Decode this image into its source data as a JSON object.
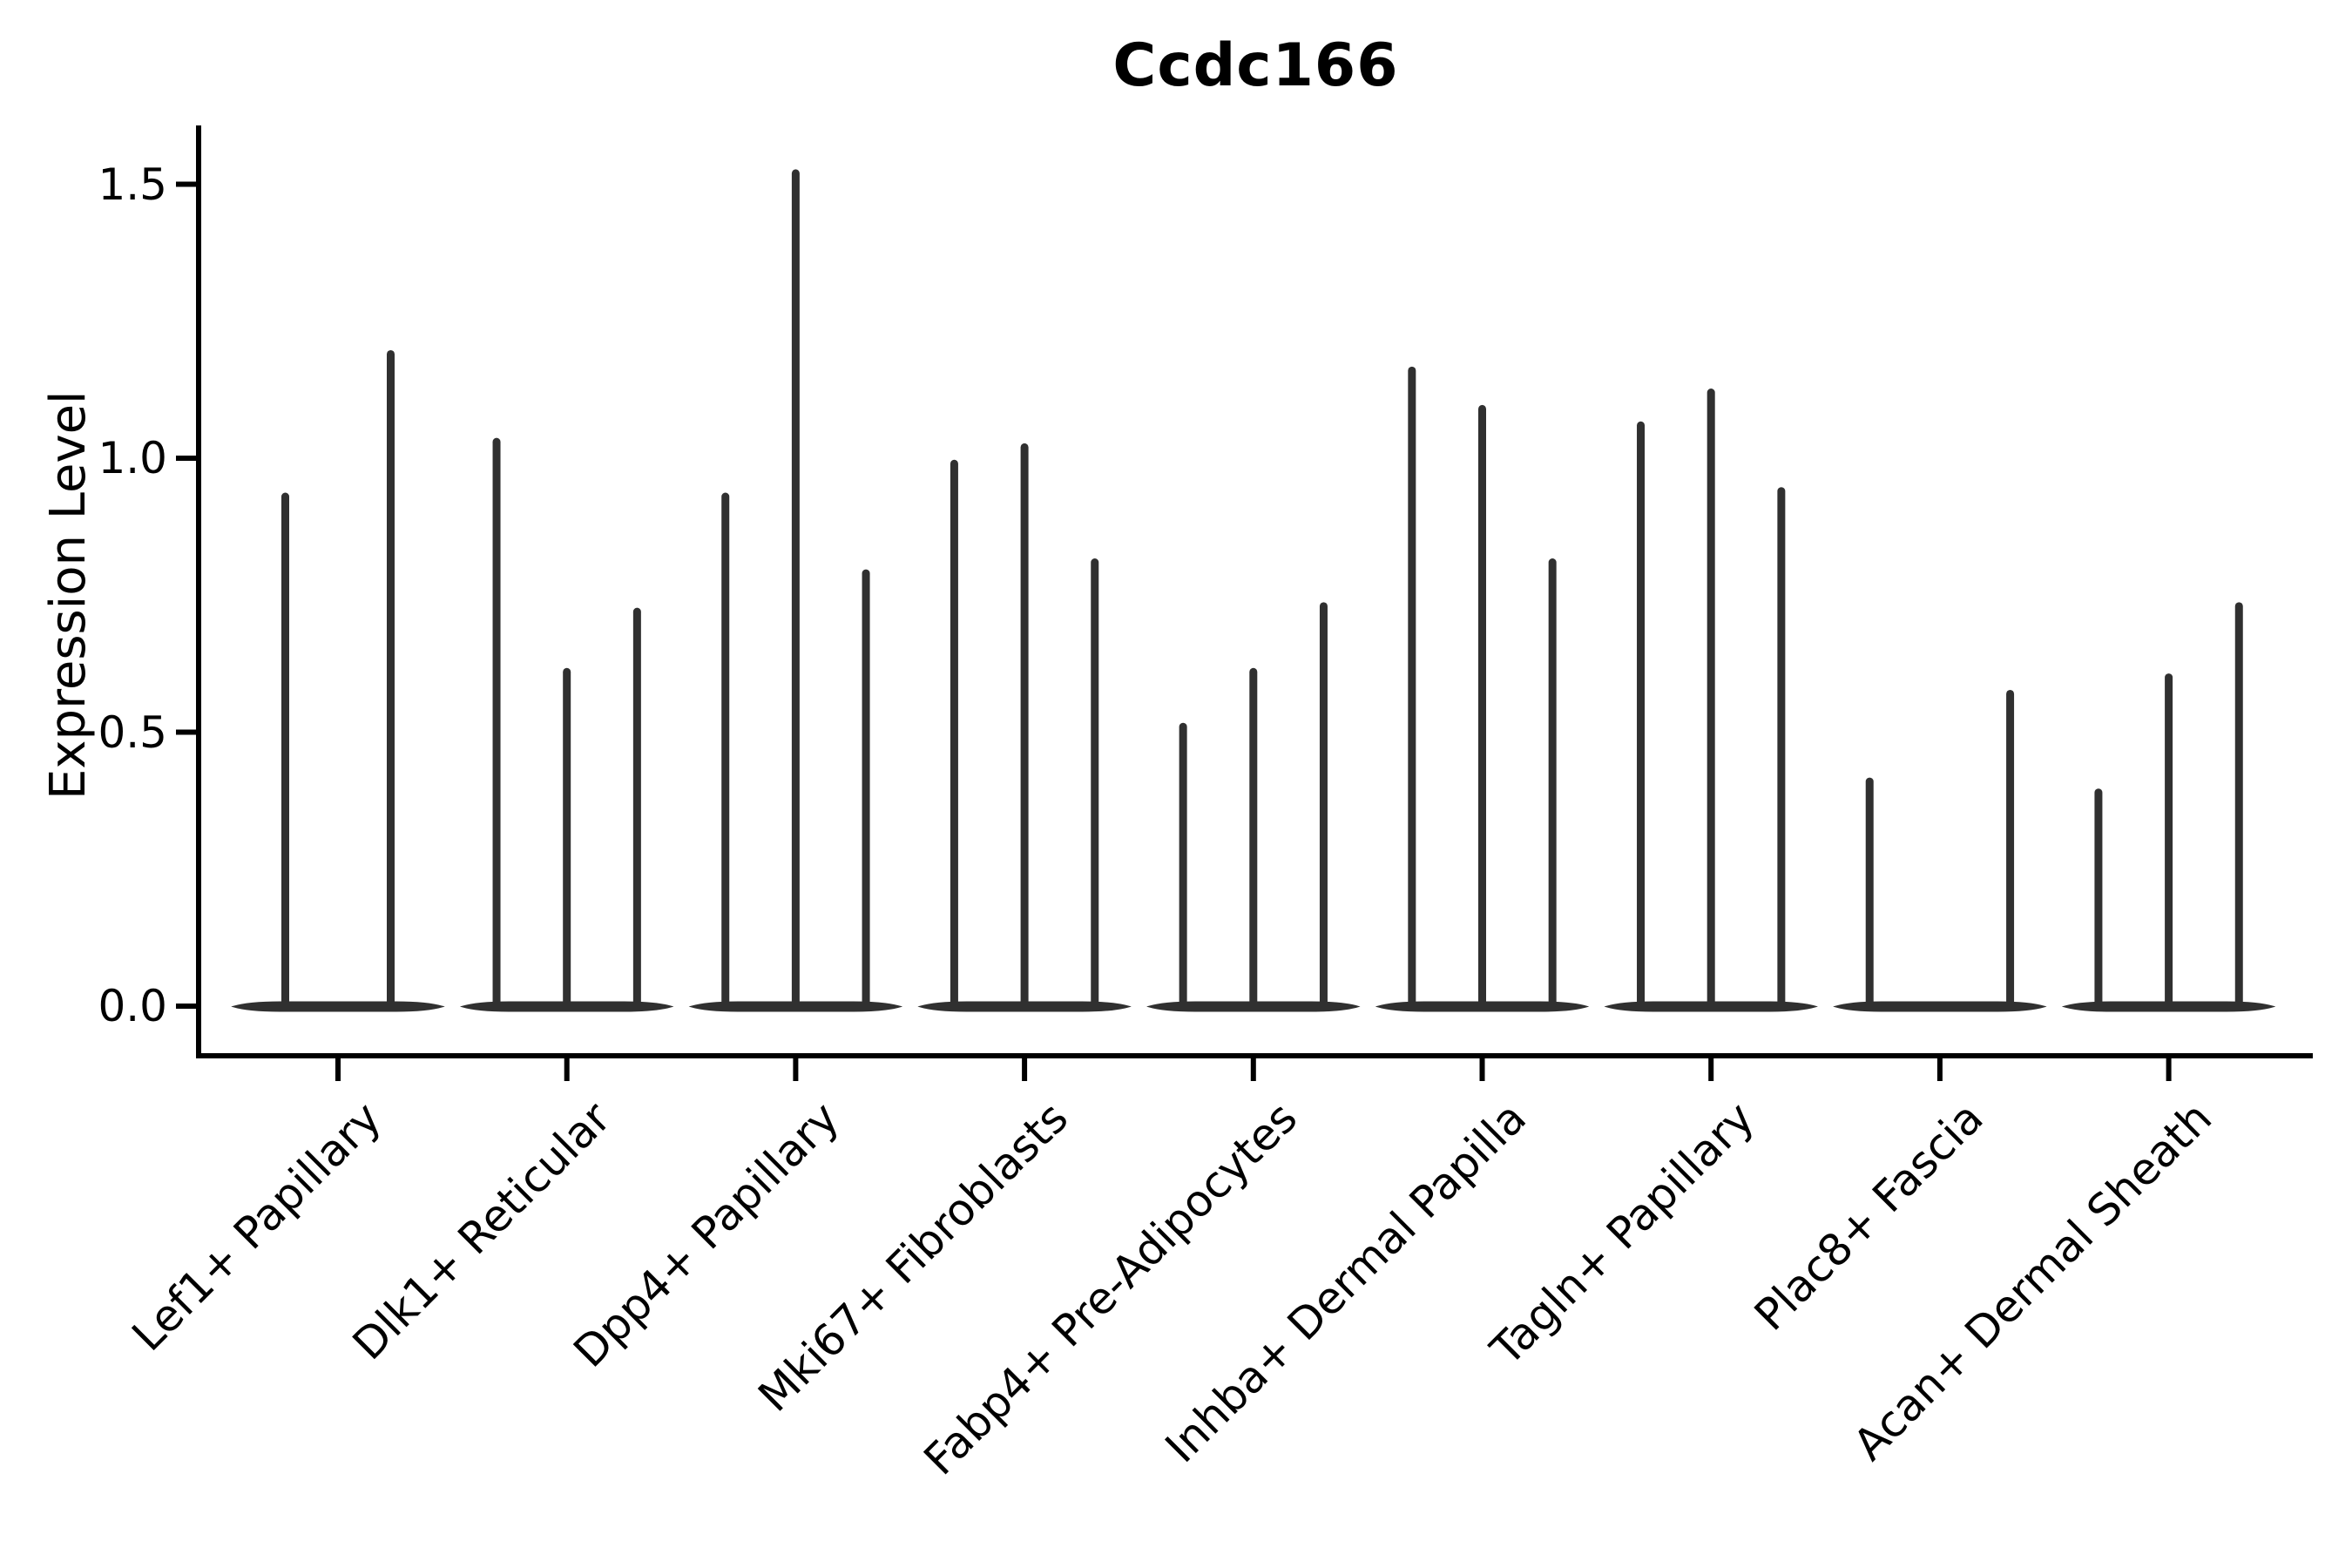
{
  "title": "Ccdc166",
  "chart_data": {
    "type": "violin",
    "title": "Ccdc166",
    "ylabel": "Expression Level",
    "xlabel": "",
    "ylim": [
      -0.06,
      1.61
    ],
    "yticks": [
      "0.0",
      "0.5",
      "1.0",
      "1.5"
    ],
    "ytick_values": [
      0.0,
      0.5,
      1.0,
      1.5
    ],
    "grid": false,
    "legend": "none",
    "colors": {
      "violin": "#303030",
      "axis": "#000000",
      "text": "#000000",
      "background": "#ffffff"
    },
    "categories": [
      "Lef1+ Papillary",
      "Dlk1+ Reticular",
      "Dpp4+ Papillary",
      "Mki67+ Fibroblasts",
      "Fabp4+ Pre-Adipocytes",
      "Inhba+ Dermal Papilla",
      "Tagln+ Papillary",
      "Plac8+ Fascia",
      "Acan+ Dermal Sheath"
    ],
    "groups": [
      {
        "category": "Lef1+ Papillary",
        "violin_max_values": [
          0.93,
          1.19
        ]
      },
      {
        "category": "Dlk1+ Reticular",
        "violin_max_values": [
          1.03,
          0.61,
          0.72
        ]
      },
      {
        "category": "Dpp4+ Papillary",
        "violin_max_values": [
          0.93,
          1.52,
          0.79
        ]
      },
      {
        "category": "Mki67+ Fibroblasts",
        "violin_max_values": [
          0.99,
          1.02,
          0.81
        ]
      },
      {
        "category": "Fabp4+ Pre-Adipocytes",
        "violin_max_values": [
          0.51,
          0.61,
          0.73
        ]
      },
      {
        "category": "Inhba+ Dermal Papilla",
        "violin_max_values": [
          1.16,
          1.09,
          0.81
        ]
      },
      {
        "category": "Tagln+ Papillary",
        "violin_max_values": [
          1.06,
          1.12,
          0.94
        ]
      },
      {
        "category": "Plac8+ Fascia",
        "violin_max_values": [
          0.41,
          0.0,
          0.57
        ]
      },
      {
        "category": "Acan+ Dermal Sheath",
        "violin_max_values": [
          0.39,
          0.6,
          0.73
        ]
      }
    ],
    "violin_body": "all violins are flat at expression 0 with a thin vertical density spike reaching the listed maximum expression value"
  }
}
